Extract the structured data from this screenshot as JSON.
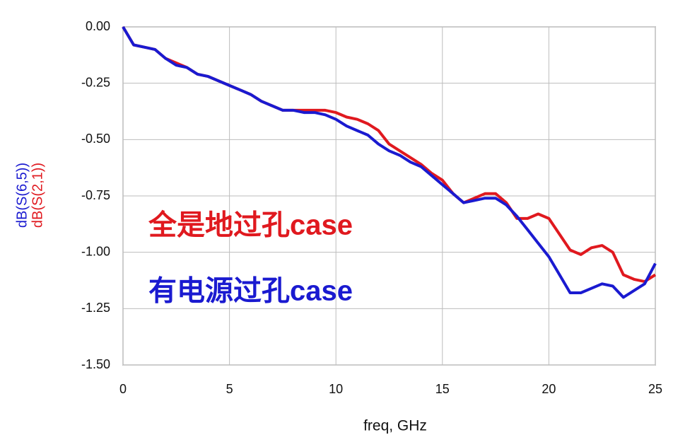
{
  "chart_data": {
    "type": "line",
    "x": [
      0,
      0.5,
      1,
      1.5,
      2,
      2.5,
      3,
      3.5,
      4,
      4.5,
      5,
      5.5,
      6,
      6.5,
      7,
      7.5,
      8,
      8.5,
      9,
      9.5,
      10,
      10.5,
      11,
      11.5,
      12,
      12.5,
      13,
      13.5,
      14,
      14.5,
      15,
      15.5,
      16,
      16.5,
      17,
      17.5,
      18,
      18.5,
      19,
      19.5,
      20,
      20.5,
      21,
      21.5,
      22,
      22.5,
      23,
      23.5,
      24,
      24.5,
      25
    ],
    "series": [
      {
        "name": "dB(S(2,1))",
        "color": "#e0191f",
        "values": [
          0,
          -0.08,
          -0.09,
          -0.1,
          -0.14,
          -0.16,
          -0.18,
          -0.21,
          -0.22,
          -0.24,
          -0.26,
          -0.28,
          -0.3,
          -0.33,
          -0.35,
          -0.37,
          -0.37,
          -0.37,
          -0.37,
          -0.37,
          -0.38,
          -0.4,
          -0.41,
          -0.43,
          -0.46,
          -0.52,
          -0.55,
          -0.58,
          -0.61,
          -0.65,
          -0.68,
          -0.74,
          -0.78,
          -0.76,
          -0.74,
          -0.74,
          -0.78,
          -0.85,
          -0.85,
          -0.83,
          -0.85,
          -0.92,
          -0.99,
          -1.01,
          -0.98,
          -0.97,
          -1.0,
          -1.1,
          -1.12,
          -1.13,
          -1.1
        ]
      },
      {
        "name": "dB(S(6,5))",
        "color": "#1a1ad0",
        "values": [
          0,
          -0.08,
          -0.09,
          -0.1,
          -0.14,
          -0.17,
          -0.18,
          -0.21,
          -0.22,
          -0.24,
          -0.26,
          -0.28,
          -0.3,
          -0.33,
          -0.35,
          -0.37,
          -0.37,
          -0.38,
          -0.38,
          -0.39,
          -0.41,
          -0.44,
          -0.46,
          -0.48,
          -0.52,
          -0.55,
          -0.57,
          -0.6,
          -0.62,
          -0.66,
          -0.7,
          -0.74,
          -0.78,
          -0.77,
          -0.76,
          -0.76,
          -0.79,
          -0.84,
          -0.9,
          -0.96,
          -1.02,
          -1.1,
          -1.18,
          -1.18,
          -1.16,
          -1.14,
          -1.15,
          -1.2,
          -1.17,
          -1.14,
          -1.05
        ]
      }
    ],
    "x_label": "freq, GHz",
    "annotations": [
      {
        "text": "全是地过孔case",
        "color": "#e0191f"
      },
      {
        "text": "有电源过孔case",
        "color": "#1a1ad0"
      }
    ],
    "xlim": [
      0,
      25
    ],
    "xticks": [
      0,
      5,
      10,
      15,
      20,
      25
    ],
    "ylim": [
      -1.5,
      0
    ],
    "yticks": [
      {
        "value": 0,
        "label": "0.00"
      },
      -0.25,
      {
        "value": -0.5,
        "label": "-0.50"
      },
      {
        "value": -0.75,
        "label": "-0.75"
      },
      {
        "value": -1,
        "label": "-1.00"
      },
      -1.25,
      {
        "value": -1.5,
        "label": "-1.50"
      }
    ],
    "grid": true
  }
}
